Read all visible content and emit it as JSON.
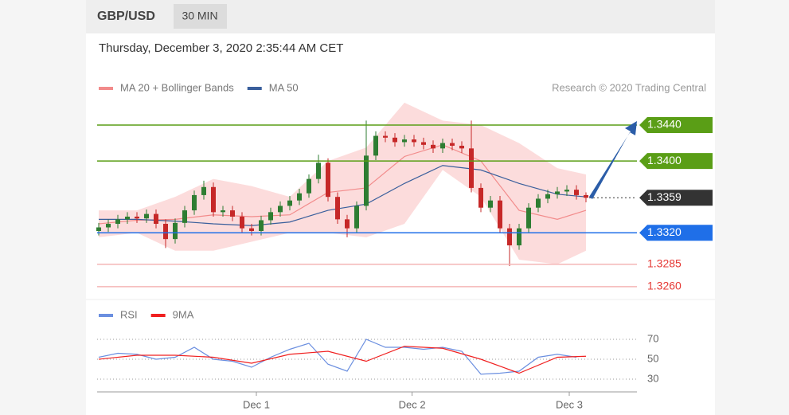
{
  "header": {
    "symbol": "GBP/USD",
    "interval": "30 MIN"
  },
  "timestamp": "Thursday, December 3, 2020 2:35:44 AM CET",
  "attribution": "Research © 2020 Trading Central",
  "chart_data": [
    {
      "type": "candlestick",
      "up_color": "#2e7d32",
      "down_color": "#c62828",
      "x": [
        0,
        1,
        2,
        3,
        4,
        5,
        6,
        7,
        8,
        9,
        10,
        11,
        12,
        13,
        14,
        15,
        16,
        17,
        18,
        19,
        20,
        21,
        22,
        23,
        24,
        25,
        26,
        27,
        28,
        29,
        30,
        31,
        32,
        33,
        34,
        35,
        36,
        37,
        38,
        39,
        40,
        41,
        42,
        43,
        44,
        45,
        46,
        47,
        48,
        49,
        50,
        51
      ],
      "xlim": [
        -0.5,
        51.5
      ],
      "ylim": [
        1.3251,
        1.3464
      ],
      "open": [
        1.3322,
        1.3326,
        1.333,
        1.3335,
        1.3338,
        1.3336,
        1.3341,
        1.333,
        1.3313,
        1.3331,
        1.3345,
        1.3362,
        1.3371,
        1.3343,
        1.3345,
        1.3338,
        1.3325,
        1.3322,
        1.3334,
        1.3343,
        1.335,
        1.3356,
        1.3364,
        1.338,
        1.3398,
        1.336,
        1.3335,
        1.3325,
        1.335,
        1.3406,
        1.3428,
        1.3426,
        1.3421,
        1.3424,
        1.3421,
        1.3418,
        1.3414,
        1.342,
        1.3417,
        1.3414,
        1.337,
        1.3348,
        1.3356,
        1.3325,
        1.3306,
        1.3325,
        1.3348,
        1.3358,
        1.3363,
        1.3366,
        1.3368,
        1.3362
      ],
      "high": [
        1.3331,
        1.3335,
        1.334,
        1.3343,
        1.3343,
        1.3346,
        1.3346,
        1.3335,
        1.3336,
        1.335,
        1.3367,
        1.3378,
        1.3376,
        1.335,
        1.335,
        1.3343,
        1.333,
        1.3339,
        1.3348,
        1.3355,
        1.3361,
        1.3369,
        1.3385,
        1.3407,
        1.3403,
        1.3365,
        1.334,
        1.3355,
        1.3445,
        1.3433,
        1.3433,
        1.3431,
        1.3429,
        1.3429,
        1.3426,
        1.3423,
        1.3425,
        1.3425,
        1.3422,
        1.3445,
        1.3375,
        1.3361,
        1.3361,
        1.333,
        1.333,
        1.3353,
        1.3363,
        1.3368,
        1.3371,
        1.3373,
        1.3373,
        1.3365
      ],
      "low": [
        1.3317,
        1.3321,
        1.3325,
        1.333,
        1.3331,
        1.3331,
        1.3325,
        1.3303,
        1.3308,
        1.3326,
        1.334,
        1.3357,
        1.3338,
        1.3338,
        1.3333,
        1.332,
        1.3317,
        1.3317,
        1.3329,
        1.3338,
        1.3345,
        1.3351,
        1.3359,
        1.3375,
        1.3355,
        1.333,
        1.3315,
        1.332,
        1.3345,
        1.3401,
        1.3421,
        1.3416,
        1.3416,
        1.3416,
        1.3413,
        1.3409,
        1.3409,
        1.3412,
        1.3409,
        1.3365,
        1.3343,
        1.3343,
        1.332,
        1.3283,
        1.3301,
        1.332,
        1.3343,
        1.3353,
        1.3358,
        1.3361,
        1.3357,
        1.3354
      ],
      "close": [
        1.3326,
        1.333,
        1.3335,
        1.3338,
        1.3336,
        1.3341,
        1.333,
        1.3313,
        1.3331,
        1.3345,
        1.3362,
        1.3371,
        1.3343,
        1.3345,
        1.3338,
        1.3325,
        1.3322,
        1.3334,
        1.3343,
        1.335,
        1.3356,
        1.3364,
        1.338,
        1.3398,
        1.336,
        1.3335,
        1.3325,
        1.335,
        1.3406,
        1.3428,
        1.3426,
        1.3421,
        1.3424,
        1.3421,
        1.3418,
        1.3414,
        1.342,
        1.3417,
        1.3414,
        1.337,
        1.3348,
        1.3356,
        1.3325,
        1.3306,
        1.3325,
        1.3348,
        1.3358,
        1.3363,
        1.3366,
        1.3368,
        1.3362,
        1.3359
      ],
      "bands": {
        "color": "#fbd3d3",
        "x": [
          0,
          4,
          8,
          12,
          16,
          20,
          24,
          28,
          32,
          36,
          40,
          44,
          48,
          51
        ],
        "upper": [
          1.3345,
          1.3345,
          1.336,
          1.338,
          1.3372,
          1.336,
          1.34,
          1.3415,
          1.3465,
          1.3445,
          1.344,
          1.342,
          1.3392,
          1.3385
        ],
        "lower": [
          1.3315,
          1.332,
          1.33,
          1.33,
          1.331,
          1.332,
          1.332,
          1.3315,
          1.333,
          1.339,
          1.336,
          1.329,
          1.3285,
          1.33
        ]
      },
      "series": [
        {
          "name": "MA 20 + Bollinger Bands",
          "color": "#f28b8b",
          "x": [
            0,
            4,
            8,
            12,
            16,
            20,
            24,
            28,
            32,
            36,
            40,
            44,
            48,
            51
          ],
          "values": [
            1.333,
            1.3334,
            1.3335,
            1.334,
            1.3338,
            1.334,
            1.3365,
            1.337,
            1.3405,
            1.3418,
            1.34,
            1.3345,
            1.3335,
            1.3345
          ]
        },
        {
          "name": "MA 50",
          "color": "#3a5f9c",
          "x": [
            0,
            4,
            8,
            12,
            16,
            20,
            24,
            28,
            32,
            36,
            40,
            44,
            48,
            51
          ],
          "values": [
            1.3335,
            1.3335,
            1.3333,
            1.333,
            1.3328,
            1.3332,
            1.3345,
            1.3352,
            1.3375,
            1.3395,
            1.339,
            1.3375,
            1.3363,
            1.336
          ]
        }
      ],
      "levels": {
        "values": [
          1.344,
          1.34,
          1.3359,
          1.332,
          1.3285,
          1.326
        ],
        "value_labels": [
          "1.3440",
          "1.3400",
          "1.3359",
          "1.3320",
          "1.3285",
          "1.3260"
        ],
        "colors": [
          "#5a9e16",
          "#5a9e16",
          "#333333",
          "#1f6fe8",
          "#f4b6b6",
          "#f4b6b6"
        ],
        "label_style": [
          "box",
          "box",
          "box",
          "box",
          "text",
          "text"
        ]
      }
    },
    {
      "type": "line",
      "xlim": [
        -0.5,
        51.5
      ],
      "ylim": [
        22,
        86
      ],
      "yticks": [
        30,
        50,
        70
      ],
      "xticks": [
        {
          "value": 16.5,
          "label": "Dec 1"
        },
        {
          "value": 32.8,
          "label": "Dec 2"
        },
        {
          "value": 49.25,
          "label": "Dec 3"
        }
      ],
      "series": [
        {
          "name": "RSI",
          "color": "#6b8fe0",
          "x": [
            0,
            2,
            4,
            6,
            8,
            10,
            12,
            14,
            16,
            18,
            20,
            22,
            24,
            26,
            28,
            30,
            32,
            34,
            36,
            38,
            40,
            42,
            44,
            46,
            48,
            50
          ],
          "values": [
            52,
            56,
            55,
            50,
            52,
            62,
            50,
            48,
            42,
            52,
            60,
            66,
            45,
            38,
            70,
            62,
            62,
            60,
            62,
            58,
            35,
            36,
            38,
            52,
            55,
            52
          ]
        },
        {
          "name": "9MA",
          "color": "#f02020",
          "x": [
            0,
            4,
            8,
            12,
            16,
            20,
            24,
            28,
            32,
            36,
            40,
            44,
            48,
            51
          ],
          "values": [
            50,
            54,
            54,
            52,
            46,
            55,
            58,
            48,
            63,
            61,
            50,
            36,
            52,
            53
          ]
        }
      ]
    }
  ]
}
